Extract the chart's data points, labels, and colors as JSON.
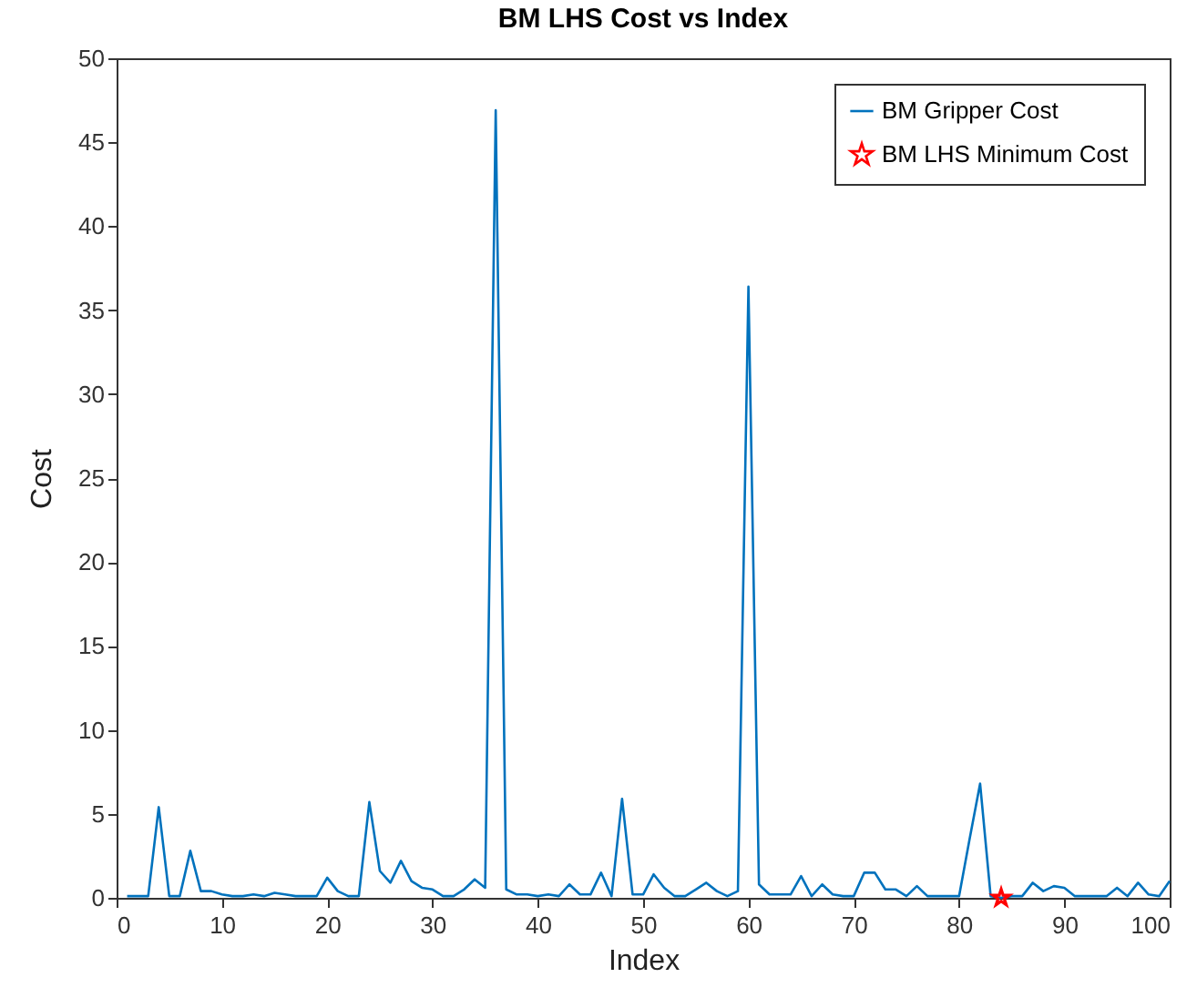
{
  "chart_data": {
    "type": "line",
    "title": "BM LHS Cost vs Index",
    "xlabel": "Index",
    "ylabel": "Cost",
    "x": [
      1,
      2,
      3,
      4,
      5,
      6,
      7,
      8,
      9,
      10,
      11,
      12,
      13,
      14,
      15,
      16,
      17,
      18,
      19,
      20,
      21,
      22,
      23,
      24,
      25,
      26,
      27,
      28,
      29,
      30,
      31,
      32,
      33,
      34,
      35,
      36,
      37,
      38,
      39,
      40,
      41,
      42,
      43,
      44,
      45,
      46,
      47,
      48,
      49,
      50,
      51,
      52,
      53,
      54,
      55,
      56,
      57,
      58,
      59,
      60,
      61,
      62,
      63,
      64,
      65,
      66,
      67,
      68,
      69,
      70,
      71,
      72,
      73,
      74,
      75,
      76,
      77,
      78,
      79,
      80,
      81,
      82,
      83,
      84,
      85,
      86,
      87,
      88,
      89,
      90,
      91,
      92,
      93,
      94,
      95,
      96,
      97,
      98,
      99,
      100
    ],
    "series": [
      {
        "name": "BM Gripper Cost",
        "color": "#0072bd",
        "values": [
          0.1,
          0.1,
          0.1,
          5.4,
          0.1,
          0.1,
          2.8,
          0.4,
          0.4,
          0.2,
          0.1,
          0.1,
          0.2,
          0.1,
          0.3,
          0.2,
          0.1,
          0.1,
          0.1,
          1.2,
          0.4,
          0.1,
          0.1,
          5.7,
          1.6,
          0.9,
          2.2,
          1.0,
          0.6,
          0.5,
          0.1,
          0.1,
          0.5,
          1.1,
          0.6,
          46.9,
          0.5,
          0.2,
          0.2,
          0.1,
          0.2,
          0.1,
          0.8,
          0.2,
          0.2,
          1.5,
          0.1,
          5.9,
          0.2,
          0.2,
          1.4,
          0.6,
          0.1,
          0.1,
          0.5,
          0.9,
          0.4,
          0.1,
          0.4,
          36.4,
          0.8,
          0.2,
          0.2,
          0.2,
          1.3,
          0.1,
          0.8,
          0.2,
          0.1,
          0.1,
          1.5,
          1.5,
          0.5,
          0.5,
          0.1,
          0.7,
          0.1,
          0.1,
          0.1,
          0.1,
          3.5,
          6.8,
          0.1,
          0,
          0.1,
          0.1,
          0.9,
          0.4,
          0.7,
          0.6,
          0.1,
          0.1,
          0.1,
          0.1,
          0.6,
          0.1,
          0.9,
          0.2,
          0.1,
          1.0
        ]
      },
      {
        "name": "BM LHS Minimum Cost",
        "color": "#ff0000",
        "type": "scatter",
        "marker": "star",
        "x": [
          84
        ],
        "values": [
          0
        ]
      }
    ],
    "xlim": [
      0,
      100
    ],
    "xticks": [
      0,
      10,
      20,
      30,
      40,
      50,
      60,
      70,
      80,
      90,
      100
    ],
    "ylim": [
      0,
      50
    ],
    "yticks": [
      0,
      5,
      10,
      15,
      20,
      25,
      30,
      35,
      40,
      45,
      50
    ],
    "legend": "top right"
  }
}
